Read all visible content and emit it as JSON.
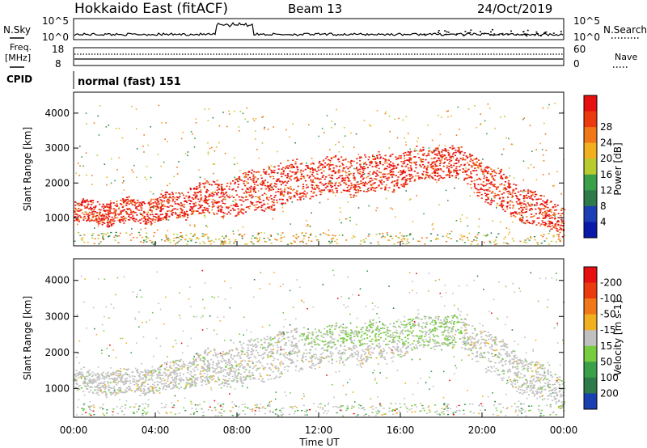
{
  "header": {
    "station": "Hokkaido East (fitACF)",
    "beam": "Beam 13",
    "date": "24/Oct/2019"
  },
  "top_panels": {
    "nsky_label": "N.Sky",
    "nsearch_label": "N.Search",
    "nsky_ticks": [
      "10^5",
      "10^0"
    ],
    "nsearch_ticks": [
      "10^5",
      "10^0"
    ],
    "freq_label_1": "Freq.",
    "freq_label_2": "[MHz]",
    "freq_ticks": [
      "18",
      "8"
    ],
    "nave_label": "Nave",
    "nave_ticks": [
      "60",
      "0"
    ],
    "cpid_label": "CPID",
    "cpid_value": "normal (fast) 151"
  },
  "chart_data": [
    {
      "type": "heatmap",
      "title": "",
      "xlabel": "",
      "ylabel": "Slant Range [km]",
      "x_ticks": [
        "00:00",
        "04:00",
        "08:00",
        "12:00",
        "16:00",
        "20:00",
        "00:00"
      ],
      "y_ticks": [
        1000,
        2000,
        3000,
        4000
      ],
      "ylim": [
        200,
        4600
      ],
      "colorbar_label": "Power [dB]",
      "colorbar_ticks": [
        4,
        8,
        12,
        16,
        20,
        24,
        28
      ],
      "colorbar_colors": [
        "#0a1aa8",
        "#1c3fb5",
        "#2f7a4a",
        "#3aa14a",
        "#b8cc30",
        "#f0b020",
        "#f07818",
        "#ec3a10",
        "#e61010"
      ],
      "bands_hours_km": [
        {
          "t": 0.0,
          "lo": 900,
          "hi": 1500
        },
        {
          "t": 2.0,
          "lo": 850,
          "hi": 1500
        },
        {
          "t": 4.0,
          "lo": 900,
          "hi": 1600
        },
        {
          "t": 6.0,
          "lo": 1100,
          "hi": 2000
        },
        {
          "t": 8.0,
          "lo": 1100,
          "hi": 2200
        },
        {
          "t": 10.0,
          "lo": 1300,
          "hi": 2600
        },
        {
          "t": 12.0,
          "lo": 1700,
          "hi": 2700
        },
        {
          "t": 14.0,
          "lo": 1700,
          "hi": 2800
        },
        {
          "t": 16.0,
          "lo": 1900,
          "hi": 2900
        },
        {
          "t": 17.5,
          "lo": 2200,
          "hi": 3050
        },
        {
          "t": 19.0,
          "lo": 2100,
          "hi": 3000
        },
        {
          "t": 20.5,
          "lo": 1300,
          "hi": 2500
        },
        {
          "t": 22.0,
          "lo": 900,
          "hi": 1900
        },
        {
          "t": 24.0,
          "lo": 500,
          "hi": 1300
        }
      ]
    },
    {
      "type": "heatmap",
      "title": "",
      "xlabel": "Time UT",
      "ylabel": "Slant Range [km]",
      "x_ticks": [
        "00:00",
        "04:00",
        "08:00",
        "12:00",
        "16:00",
        "20:00",
        "00:00"
      ],
      "y_ticks": [
        1000,
        2000,
        3000,
        4000
      ],
      "ylim": [
        200,
        4600
      ],
      "colorbar_label": "Velocity [m s-1]",
      "colorbar_ticks": [
        200,
        100,
        50,
        15,
        -15,
        -50,
        -100,
        -200
      ],
      "colorbar_colors": [
        "#1a3fb0",
        "#2f7a4a",
        "#3aa14a",
        "#78cc40",
        "#c0c0c0",
        "#f0b020",
        "#f07818",
        "#ec3a10",
        "#e61010"
      ],
      "dominant_value": "-15 to 15 (grey)"
    }
  ]
}
